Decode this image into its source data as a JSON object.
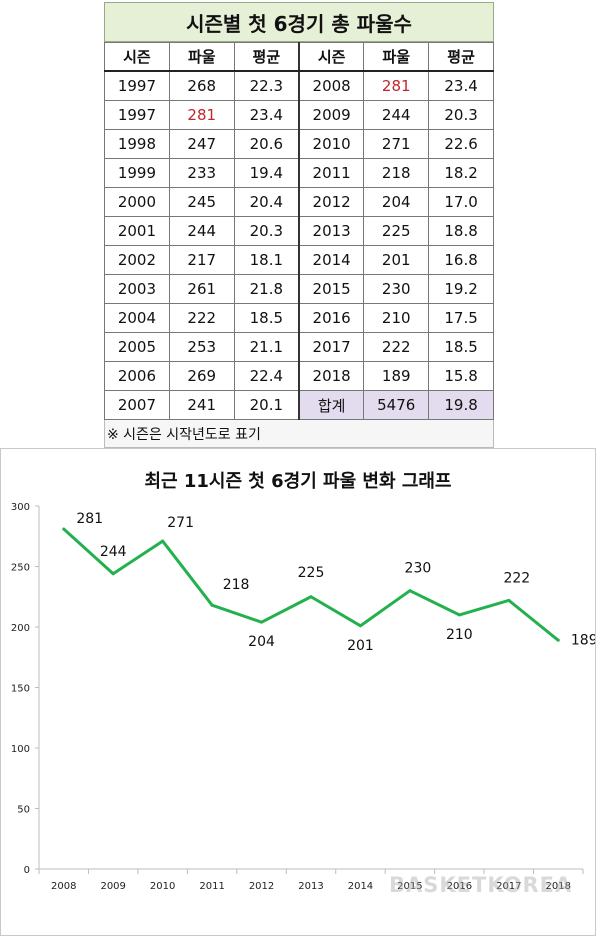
{
  "table": {
    "title": "시즌별 첫 6경기 총 파울수",
    "headers": [
      "시즌",
      "파울",
      "평균",
      "시즌",
      "파울",
      "평균"
    ],
    "rows": [
      [
        {
          "v": "1997"
        },
        {
          "v": "268"
        },
        {
          "v": "22.3"
        },
        {
          "v": "2008"
        },
        {
          "v": "281",
          "red": true
        },
        {
          "v": "23.4"
        }
      ],
      [
        {
          "v": "1997"
        },
        {
          "v": "281",
          "red": true
        },
        {
          "v": "23.4"
        },
        {
          "v": "2009"
        },
        {
          "v": "244"
        },
        {
          "v": "20.3"
        }
      ],
      [
        {
          "v": "1998"
        },
        {
          "v": "247"
        },
        {
          "v": "20.6"
        },
        {
          "v": "2010"
        },
        {
          "v": "271"
        },
        {
          "v": "22.6"
        }
      ],
      [
        {
          "v": "1999"
        },
        {
          "v": "233"
        },
        {
          "v": "19.4"
        },
        {
          "v": "2011"
        },
        {
          "v": "218"
        },
        {
          "v": "18.2"
        }
      ],
      [
        {
          "v": "2000"
        },
        {
          "v": "245"
        },
        {
          "v": "20.4"
        },
        {
          "v": "2012"
        },
        {
          "v": "204"
        },
        {
          "v": "17.0"
        }
      ],
      [
        {
          "v": "2001"
        },
        {
          "v": "244"
        },
        {
          "v": "20.3"
        },
        {
          "v": "2013"
        },
        {
          "v": "225"
        },
        {
          "v": "18.8"
        }
      ],
      [
        {
          "v": "2002"
        },
        {
          "v": "217"
        },
        {
          "v": "18.1"
        },
        {
          "v": "2014"
        },
        {
          "v": "201"
        },
        {
          "v": "16.8"
        }
      ],
      [
        {
          "v": "2003"
        },
        {
          "v": "261"
        },
        {
          "v": "21.8"
        },
        {
          "v": "2015"
        },
        {
          "v": "230"
        },
        {
          "v": "19.2"
        }
      ],
      [
        {
          "v": "2004"
        },
        {
          "v": "222"
        },
        {
          "v": "18.5"
        },
        {
          "v": "2016"
        },
        {
          "v": "210"
        },
        {
          "v": "17.5"
        }
      ],
      [
        {
          "v": "2005"
        },
        {
          "v": "253"
        },
        {
          "v": "21.1"
        },
        {
          "v": "2017"
        },
        {
          "v": "222"
        },
        {
          "v": "18.5"
        }
      ],
      [
        {
          "v": "2006"
        },
        {
          "v": "269"
        },
        {
          "v": "22.4"
        },
        {
          "v": "2018"
        },
        {
          "v": "189"
        },
        {
          "v": "15.8"
        }
      ],
      [
        {
          "v": "2007"
        },
        {
          "v": "241"
        },
        {
          "v": "20.1"
        },
        {
          "v": "합계",
          "total": true
        },
        {
          "v": "5476",
          "total": true
        },
        {
          "v": "19.8",
          "total": true
        }
      ]
    ],
    "note": "※ 시즌은 시작년도로 표기"
  },
  "chart_data": {
    "type": "line",
    "title": "최근 11시즌 첫 6경기 파울 변화 그래프",
    "x": [
      "2008",
      "2009",
      "2010",
      "2011",
      "2012",
      "2013",
      "2014",
      "2015",
      "2016",
      "2017",
      "2018"
    ],
    "values": [
      281,
      244,
      271,
      218,
      204,
      225,
      201,
      230,
      210,
      222,
      189
    ],
    "ylim": [
      0,
      300
    ],
    "yticks": [
      0,
      50,
      100,
      150,
      200,
      250,
      300
    ],
    "grid": false,
    "line_color": "#22b14c"
  },
  "watermark": "BASKETKOREA"
}
